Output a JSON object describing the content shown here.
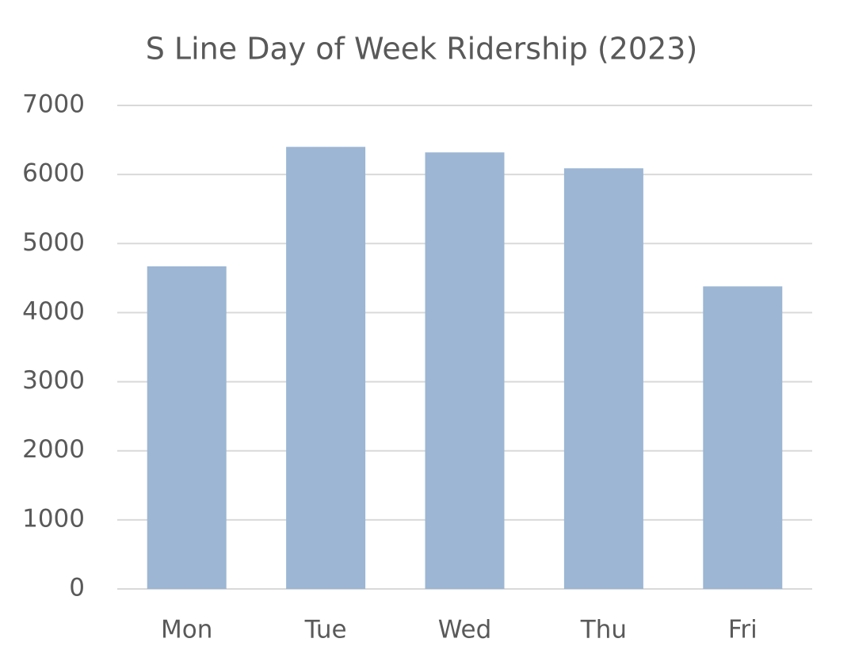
{
  "chart_data": {
    "type": "bar",
    "title": "S Line Day of Week Ridership (2023)",
    "categories": [
      "Mon",
      "Tue",
      "Wed",
      "Thu",
      "Fri"
    ],
    "values": [
      4670,
      6400,
      6320,
      6090,
      4380
    ],
    "color": "#9cb6d4",
    "ylim": [
      0,
      7000
    ],
    "yticks": [
      0,
      1000,
      2000,
      3000,
      4000,
      5000,
      6000,
      7000
    ],
    "grid": true
  }
}
